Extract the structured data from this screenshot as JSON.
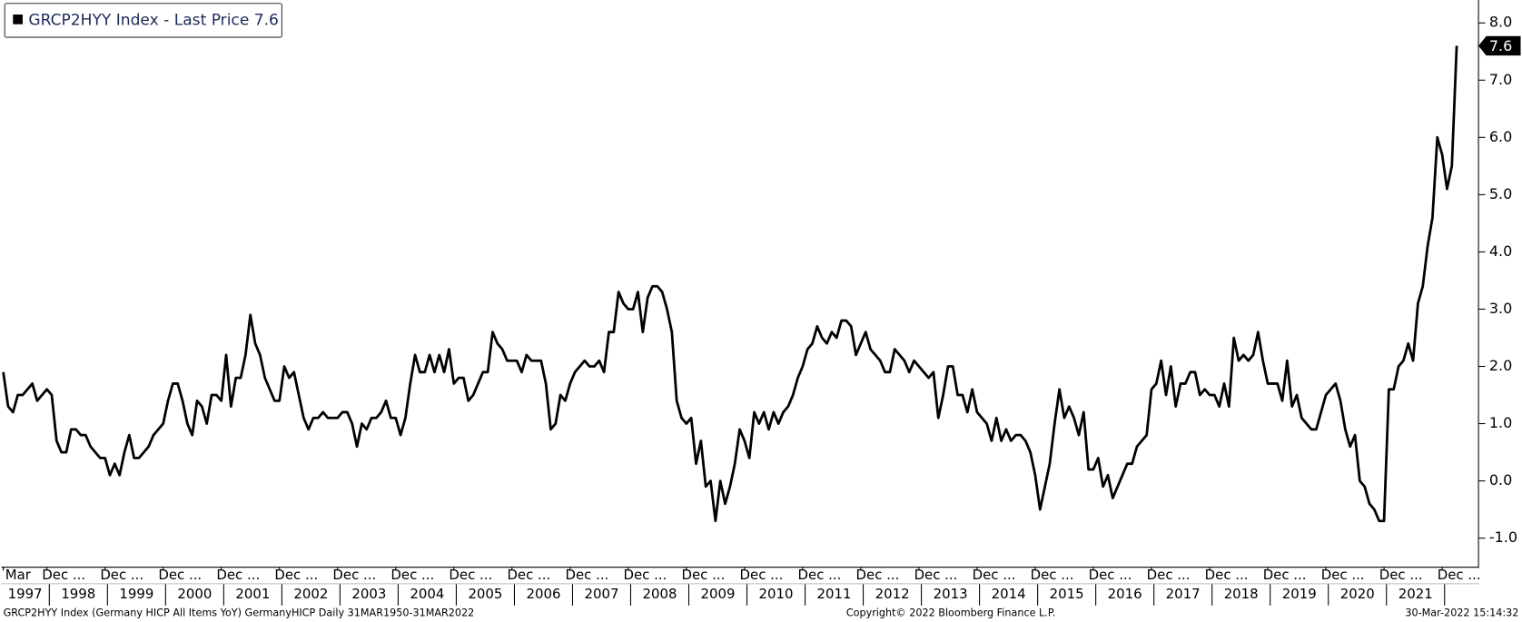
{
  "chart_data": {
    "type": "line",
    "series": [
      {
        "name": "GRCP2HYY Index - Last Price 7.6",
        "color": "#000000",
        "values": [
          1.9,
          1.3,
          1.2,
          1.5,
          1.5,
          1.6,
          1.7,
          1.4,
          1.5,
          1.6,
          1.5,
          0.7,
          0.5,
          0.5,
          0.9,
          0.9,
          0.8,
          0.8,
          0.6,
          0.5,
          0.4,
          0.4,
          0.1,
          0.3,
          0.1,
          0.5,
          0.8,
          0.4,
          0.4,
          0.5,
          0.6,
          0.8,
          0.9,
          1.0,
          1.4,
          1.7,
          1.7,
          1.4,
          1.0,
          0.8,
          1.4,
          1.3,
          1.0,
          1.5,
          1.5,
          1.4,
          2.2,
          1.3,
          1.8,
          1.8,
          2.2,
          2.9,
          2.4,
          2.2,
          1.8,
          1.6,
          1.4,
          1.4,
          2.0,
          1.8,
          1.9,
          1.5,
          1.1,
          0.9,
          1.1,
          1.1,
          1.2,
          1.1,
          1.1,
          1.1,
          1.2,
          1.2,
          1.0,
          0.6,
          1.0,
          0.9,
          1.1,
          1.1,
          1.2,
          1.4,
          1.1,
          1.1,
          0.8,
          1.1,
          1.7,
          2.2,
          1.9,
          1.9,
          2.2,
          1.9,
          2.2,
          1.9,
          2.3,
          1.7,
          1.8,
          1.8,
          1.4,
          1.5,
          1.7,
          1.9,
          1.9,
          2.6,
          2.4,
          2.3,
          2.1,
          2.1,
          2.1,
          1.9,
          2.2,
          2.1,
          2.1,
          2.1,
          1.7,
          0.9,
          1.0,
          1.5,
          1.4,
          1.7,
          1.9,
          2.0,
          2.1,
          2.0,
          2.0,
          2.1,
          1.9,
          2.6,
          2.6,
          3.3,
          3.1,
          3.0,
          3.0,
          3.3,
          2.6,
          3.2,
          3.4,
          3.4,
          3.3,
          3.0,
          2.6,
          1.4,
          1.1,
          1.0,
          1.1,
          0.3,
          0.7,
          -0.1,
          0.0,
          -0.7,
          0.0,
          -0.4,
          -0.1,
          0.3,
          0.9,
          0.7,
          0.4,
          1.2,
          1.0,
          1.2,
          0.9,
          1.2,
          1.0,
          1.2,
          1.3,
          1.5,
          1.8,
          2.0,
          2.3,
          2.4,
          2.7,
          2.5,
          2.4,
          2.6,
          2.5,
          2.8,
          2.8,
          2.7,
          2.2,
          2.4,
          2.6,
          2.3,
          2.2,
          2.1,
          1.9,
          1.9,
          2.3,
          2.2,
          2.1,
          1.9,
          2.1,
          2.0,
          1.9,
          1.8,
          1.9,
          1.1,
          1.5,
          2.0,
          2.0,
          1.5,
          1.5,
          1.2,
          1.6,
          1.2,
          1.1,
          1.0,
          0.7,
          1.1,
          0.7,
          0.9,
          0.7,
          0.8,
          0.8,
          0.7,
          0.5,
          0.1,
          -0.5,
          -0.1,
          0.3,
          1.0,
          1.6,
          1.1,
          1.3,
          1.1,
          0.8,
          1.2,
          0.2,
          0.2,
          0.4,
          -0.1,
          0.1,
          -0.3,
          -0.1,
          0.1,
          0.3,
          0.3,
          0.6,
          0.7,
          0.8,
          1.6,
          1.7,
          2.1,
          1.5,
          2.0,
          1.3,
          1.7,
          1.7,
          1.9,
          1.9,
          1.5,
          1.6,
          1.5,
          1.5,
          1.3,
          1.7,
          1.3,
          2.5,
          2.1,
          2.2,
          2.1,
          2.2,
          2.6,
          2.1,
          1.7,
          1.7,
          1.7,
          1.4,
          2.1,
          1.3,
          1.5,
          1.1,
          1.0,
          0.9,
          0.9,
          1.2,
          1.5,
          1.6,
          1.7,
          1.4,
          0.9,
          0.6,
          0.8,
          0.0,
          -0.1,
          -0.4,
          -0.5,
          -0.7,
          -0.7,
          1.6,
          1.6,
          2.0,
          2.1,
          2.4,
          2.1,
          3.1,
          3.4,
          4.1,
          4.6,
          6.0,
          5.7,
          5.1,
          5.5,
          7.6
        ]
      }
    ],
    "categories": [
      "1997-03",
      "1997-04",
      "1997-05",
      "1997-06",
      "1997-07",
      "1997-08",
      "1997-09",
      "1997-10",
      "1997-11",
      "1997-12",
      "1998-01",
      "1998-02",
      "1998-03",
      "1998-04",
      "1998-05",
      "1998-06",
      "1998-07",
      "1998-08",
      "1998-09",
      "1998-10",
      "1998-11",
      "1998-12",
      "1999-01",
      "1999-02",
      "1999-03",
      "1999-04",
      "1999-05",
      "1999-06",
      "1999-07",
      "1999-08",
      "1999-09",
      "1999-10",
      "1999-11",
      "1999-12",
      "2000-01",
      "2000-02",
      "2000-03",
      "2000-04",
      "2000-05",
      "2000-06",
      "2000-07",
      "2000-08",
      "2000-09",
      "2000-10",
      "2000-11",
      "2000-12",
      "2001-01",
      "2001-02",
      "2001-03",
      "2001-04",
      "2001-05",
      "2001-06",
      "2001-07",
      "2001-08",
      "2001-09",
      "2001-10",
      "2001-11",
      "2001-12",
      "2002-01",
      "2002-02",
      "2002-03",
      "2002-04",
      "2002-05",
      "2002-06",
      "2002-07",
      "2002-08",
      "2002-09",
      "2002-10",
      "2002-11",
      "2002-12",
      "2003-01",
      "2003-02",
      "2003-03",
      "2003-04",
      "2003-05",
      "2003-06",
      "2003-07",
      "2003-08",
      "2003-09",
      "2003-10",
      "2003-11",
      "2003-12",
      "2004-01",
      "2004-02",
      "2004-03",
      "2004-04",
      "2004-05",
      "2004-06",
      "2004-07",
      "2004-08",
      "2004-09",
      "2004-10",
      "2004-11",
      "2004-12",
      "2005-01",
      "2005-02",
      "2005-03",
      "2005-04",
      "2005-05",
      "2005-06",
      "2005-07",
      "2005-08",
      "2005-09",
      "2005-10",
      "2005-11",
      "2005-12",
      "2006-01",
      "2006-02",
      "2006-03",
      "2006-04",
      "2006-05",
      "2006-06",
      "2006-07",
      "2006-08",
      "2006-09",
      "2006-10",
      "2006-11",
      "2006-12",
      "2007-01",
      "2007-02",
      "2007-03",
      "2007-04",
      "2007-05",
      "2007-06",
      "2007-07",
      "2007-08",
      "2007-09",
      "2007-10",
      "2007-11",
      "2007-12",
      "2008-01",
      "2008-02",
      "2008-03",
      "2008-04",
      "2008-05",
      "2008-06",
      "2008-07",
      "2008-08",
      "2008-09",
      "2008-10",
      "2008-11",
      "2008-12",
      "2009-01",
      "2009-02",
      "2009-03",
      "2009-04",
      "2009-05",
      "2009-06",
      "2009-07",
      "2009-08",
      "2009-09",
      "2009-10",
      "2009-11",
      "2009-12",
      "2010-01",
      "2010-02",
      "2010-03",
      "2010-04",
      "2010-05",
      "2010-06",
      "2010-07",
      "2010-08",
      "2010-09",
      "2010-10",
      "2010-11",
      "2010-12",
      "2011-01",
      "2011-02",
      "2011-03",
      "2011-04",
      "2011-05",
      "2011-06",
      "2011-07",
      "2011-08",
      "2011-09",
      "2011-10",
      "2011-11",
      "2011-12",
      "2012-01",
      "2012-02",
      "2012-03",
      "2012-04",
      "2012-05",
      "2012-06",
      "2012-07",
      "2012-08",
      "2012-09",
      "2012-10",
      "2012-11",
      "2012-12",
      "2013-01",
      "2013-02",
      "2013-03",
      "2013-04",
      "2013-05",
      "2013-06",
      "2013-07",
      "2013-08",
      "2013-09",
      "2013-10",
      "2013-11",
      "2013-12",
      "2014-01",
      "2014-02",
      "2014-03",
      "2014-04",
      "2014-05",
      "2014-06",
      "2014-07",
      "2014-08",
      "2014-09",
      "2014-10",
      "2014-11",
      "2014-12",
      "2015-01",
      "2015-02",
      "2015-03",
      "2015-04",
      "2015-05",
      "2015-06",
      "2015-07",
      "2015-08",
      "2015-09",
      "2015-10",
      "2015-11",
      "2015-12",
      "2016-01",
      "2016-02",
      "2016-03",
      "2016-04",
      "2016-05",
      "2016-06",
      "2016-07",
      "2016-08",
      "2016-09",
      "2016-10",
      "2016-11",
      "2016-12",
      "2017-01",
      "2017-02",
      "2017-03",
      "2017-04",
      "2017-05",
      "2017-06",
      "2017-07",
      "2017-08",
      "2017-09",
      "2017-10",
      "2017-11",
      "2017-12",
      "2018-01",
      "2018-02",
      "2018-03",
      "2018-04",
      "2018-05",
      "2018-06",
      "2018-07",
      "2018-08",
      "2018-09",
      "2018-10",
      "2018-11",
      "2018-12",
      "2019-01",
      "2019-02",
      "2019-03",
      "2019-04",
      "2019-05",
      "2019-06",
      "2019-07",
      "2019-08",
      "2019-09",
      "2019-10",
      "2019-11",
      "2019-12",
      "2020-01",
      "2020-02",
      "2020-03",
      "2020-04",
      "2020-05",
      "2020-06",
      "2020-07",
      "2020-08",
      "2020-09",
      "2020-10",
      "2020-11",
      "2020-12",
      "2021-01",
      "2021-02",
      "2021-03",
      "2021-04",
      "2021-05",
      "2021-06",
      "2021-07",
      "2021-08",
      "2021-09",
      "2021-10",
      "2021-11",
      "2021-12",
      "2022-01",
      "2022-02",
      "2022-03"
    ],
    "xticks": [
      {
        "value": "1997-03",
        "label": "Mar"
      },
      {
        "value": "1997-12",
        "label": "Dec ..."
      },
      {
        "value": "1998-12",
        "label": "Dec ..."
      },
      {
        "value": "1999-12",
        "label": "Dec ..."
      },
      {
        "value": "2000-12",
        "label": "Dec ..."
      },
      {
        "value": "2001-12",
        "label": "Dec ..."
      },
      {
        "value": "2002-12",
        "label": "Dec ..."
      },
      {
        "value": "2003-12",
        "label": "Dec ..."
      },
      {
        "value": "2004-12",
        "label": "Dec ..."
      },
      {
        "value": "2005-12",
        "label": "Dec ..."
      },
      {
        "value": "2006-12",
        "label": "Dec ..."
      },
      {
        "value": "2007-12",
        "label": "Dec ..."
      },
      {
        "value": "2008-12",
        "label": "Dec ..."
      },
      {
        "value": "2009-12",
        "label": "Dec ..."
      },
      {
        "value": "2010-12",
        "label": "Dec ..."
      },
      {
        "value": "2011-12",
        "label": "Dec ..."
      },
      {
        "value": "2012-12",
        "label": "Dec ..."
      },
      {
        "value": "2013-12",
        "label": "Dec ..."
      },
      {
        "value": "2014-12",
        "label": "Dec ..."
      },
      {
        "value": "2015-12",
        "label": "Dec ..."
      },
      {
        "value": "2016-12",
        "label": "Dec ..."
      },
      {
        "value": "2017-12",
        "label": "Dec ..."
      },
      {
        "value": "2018-12",
        "label": "Dec ..."
      },
      {
        "value": "2019-12",
        "label": "Dec ..."
      },
      {
        "value": "2020-12",
        "label": "Dec ..."
      },
      {
        "value": "2021-12",
        "label": "Dec ..."
      }
    ],
    "year_labels": [
      "1997",
      "1998",
      "1999",
      "2000",
      "2001",
      "2002",
      "2003",
      "2004",
      "2005",
      "2006",
      "2007",
      "2008",
      "2009",
      "2010",
      "2011",
      "2012",
      "2013",
      "2014",
      "2015",
      "2016",
      "2017",
      "2018",
      "2019",
      "2020",
      "2021"
    ],
    "ylim": [
      -1.5,
      8.4
    ],
    "yticks": [
      {
        "value": 8,
        "label": "8.0"
      },
      {
        "value": 7,
        "label": "7.0"
      },
      {
        "value": 6,
        "label": "6.0"
      },
      {
        "value": 5,
        "label": "5.0"
      },
      {
        "value": 4,
        "label": "4.0"
      },
      {
        "value": 3,
        "label": "3.0"
      },
      {
        "value": 2,
        "label": "2.0"
      },
      {
        "value": 1,
        "label": "1.0"
      },
      {
        "value": 0,
        "label": "0.0"
      },
      {
        "value": -1,
        "label": "-1.0"
      }
    ],
    "y_axis_side": "right",
    "grid": false,
    "legend": "upper left",
    "last_label": "7.6",
    "footer_left": "GRCP2HYY Index (Germany HICP All Items YoY) GermanyHICP  Daily 31MAR1950-31MAR2022",
    "footer_center": "Copyright© 2022 Bloomberg Finance L.P.",
    "footer_right": "30-Mar-2022 15:14:32"
  }
}
